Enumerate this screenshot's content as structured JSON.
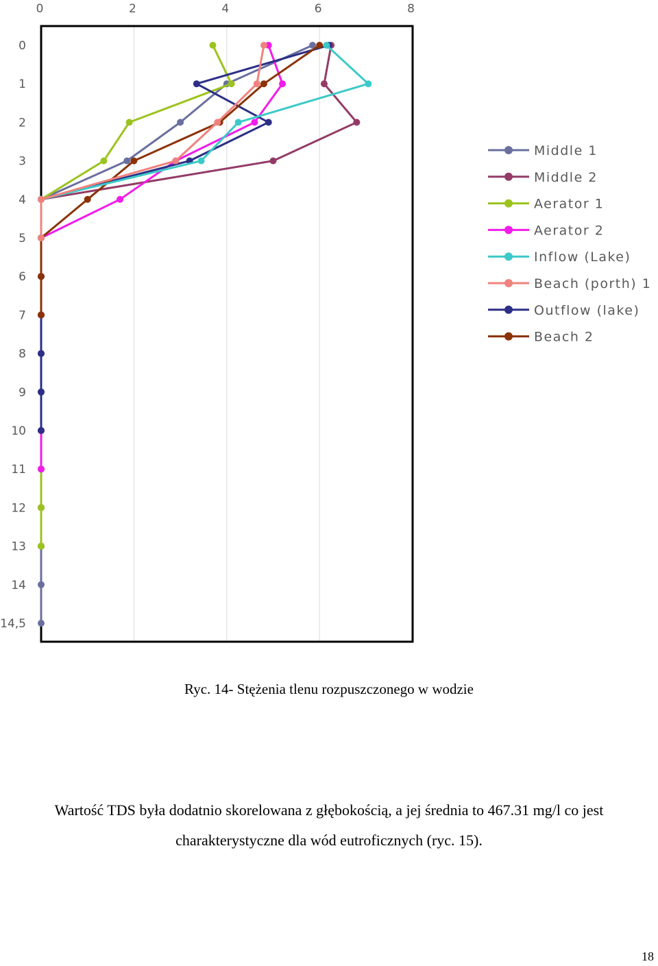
{
  "chart_data": {
    "type": "line",
    "title": "",
    "xlabel": "",
    "ylabel": "",
    "xlim": [
      0,
      8
    ],
    "x_ticks": [
      "0",
      "2",
      "4",
      "6",
      "8"
    ],
    "y_reversed": true,
    "y_ticks": [
      "0",
      "1",
      "2",
      "3",
      "4",
      "5",
      "6",
      "7",
      "8",
      "9",
      "10",
      "11",
      "12",
      "13",
      "14",
      "14,5"
    ],
    "grid": "vertical",
    "legend_position": "right",
    "series": [
      {
        "name": "Middle 1",
        "color": "#6A6FA0",
        "points": [
          [
            5.85,
            0
          ],
          [
            4.0,
            1
          ],
          [
            3.0,
            2
          ],
          [
            1.85,
            3
          ],
          [
            0,
            4
          ],
          [
            0,
            5
          ],
          [
            0,
            6
          ],
          [
            0,
            7
          ],
          [
            0,
            8
          ],
          [
            0,
            9
          ],
          [
            0,
            10
          ],
          [
            0,
            11
          ],
          [
            0,
            12
          ],
          [
            0,
            13
          ],
          [
            0,
            14
          ],
          [
            0,
            15
          ]
        ]
      },
      {
        "name": "Middle 2",
        "color": "#933B66",
        "points": [
          [
            6.25,
            0
          ],
          [
            6.1,
            1
          ],
          [
            6.8,
            2
          ],
          [
            5.0,
            3
          ],
          [
            0,
            4
          ],
          [
            0,
            5
          ],
          [
            0,
            6
          ],
          [
            0,
            7
          ],
          [
            0,
            8
          ],
          [
            0,
            9
          ],
          [
            0,
            10
          ],
          [
            0,
            11
          ],
          [
            0,
            12
          ],
          [
            0,
            13
          ]
        ]
      },
      {
        "name": "Aerator 1",
        "color": "#9BC31D",
        "points": [
          [
            3.7,
            0
          ],
          [
            4.1,
            1
          ],
          [
            1.9,
            2
          ],
          [
            1.35,
            3
          ],
          [
            0,
            4
          ],
          [
            0,
            5
          ],
          [
            0,
            6
          ],
          [
            0,
            7
          ],
          [
            0,
            8
          ],
          [
            0,
            9
          ],
          [
            0,
            10
          ],
          [
            0,
            11
          ],
          [
            0,
            12
          ],
          [
            0,
            13
          ]
        ]
      },
      {
        "name": "Aerator 2",
        "color": "#F21CEA",
        "points": [
          [
            4.9,
            0
          ],
          [
            5.2,
            1
          ],
          [
            4.6,
            2
          ],
          [
            2.9,
            3
          ],
          [
            1.7,
            4
          ],
          [
            0,
            5
          ],
          [
            0,
            6
          ],
          [
            0,
            7
          ],
          [
            0,
            8
          ],
          [
            0,
            9
          ],
          [
            0,
            10
          ],
          [
            0,
            11
          ]
        ]
      },
      {
        "name": "Inflow (Lake)",
        "color": "#3CC9C9",
        "points": [
          [
            6.15,
            0
          ],
          [
            7.05,
            1
          ],
          [
            4.25,
            2
          ],
          [
            3.45,
            3
          ],
          [
            0,
            4
          ],
          [
            0,
            5
          ]
        ]
      },
      {
        "name": "Beach (porth) 1",
        "color": "#F0827D",
        "points": [
          [
            4.8,
            0
          ],
          [
            4.65,
            1
          ],
          [
            3.8,
            2
          ],
          [
            2.9,
            3
          ],
          [
            0,
            4
          ],
          [
            0,
            5
          ]
        ]
      },
      {
        "name": "Outflow (lake)",
        "color": "#2B2F86",
        "points": [
          [
            6.2,
            0
          ],
          [
            3.35,
            1
          ],
          [
            4.9,
            2
          ],
          [
            3.2,
            3
          ],
          [
            0,
            4
          ],
          [
            0,
            5
          ],
          [
            0,
            6
          ],
          [
            0,
            7
          ],
          [
            0,
            8
          ],
          [
            0,
            9
          ],
          [
            0,
            10
          ]
        ]
      },
      {
        "name": "Beach 2",
        "color": "#8B3206",
        "points": [
          [
            6.0,
            0
          ],
          [
            4.8,
            1
          ],
          [
            3.85,
            2
          ],
          [
            2.0,
            3
          ],
          [
            1.0,
            4
          ],
          [
            0,
            5
          ],
          [
            0,
            6
          ],
          [
            0,
            7
          ]
        ]
      }
    ]
  },
  "caption": "Ryc. 14- Stężenia tlenu rozpuszczonego w wodzie",
  "paragraph": {
    "line1": "Wartość TDS była dodatnio skorelowana z głębokością, a jej średnia to 467.31 mg/l co jest",
    "line2": "charakterystyczne dla wód eutroficznych (ryc. 15)."
  },
  "page_number": "18"
}
